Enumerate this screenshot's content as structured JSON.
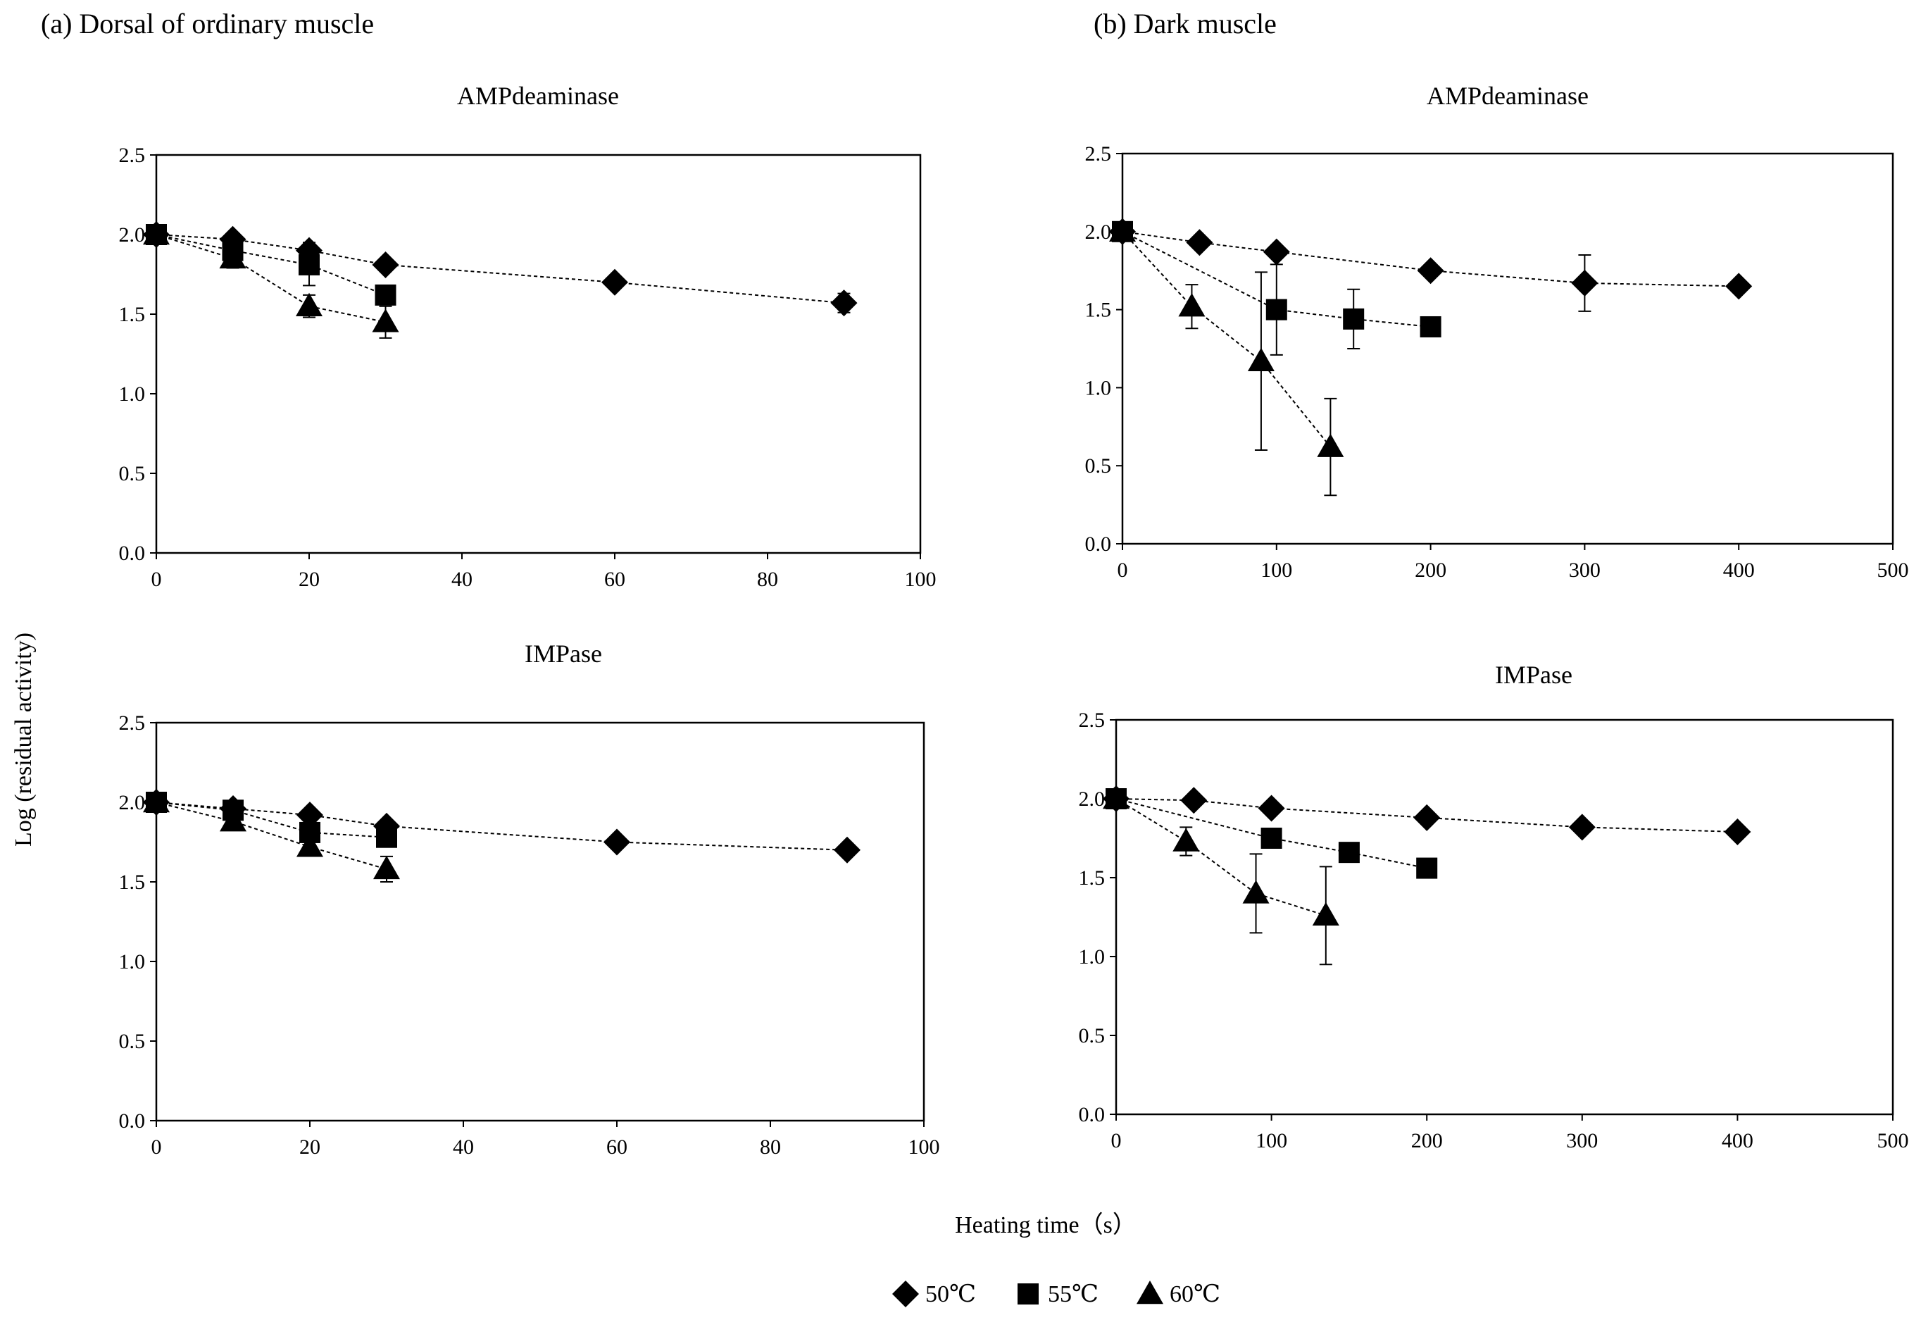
{
  "sections": [
    "(a) Dorsal of ordinary muscle",
    "(b) Dark muscle"
  ],
  "common_xlabel": "Heating time（s）",
  "common_ylabel": "Log (residual activity)",
  "legend": [
    {
      "label": "50℃",
      "marker": "diamond"
    },
    {
      "label": "55℃",
      "marker": "square"
    },
    {
      "label": "60℃",
      "marker": "triangle"
    }
  ],
  "chart_data": [
    {
      "type": "line",
      "title": "AMPdeaminase",
      "xlim": [
        0,
        100
      ],
      "xticks": [
        0,
        20,
        40,
        60,
        80,
        100
      ],
      "ylim": [
        0,
        2.5
      ],
      "yticks": [
        "0.0",
        "0.5",
        "1.0",
        "1.5",
        "2.0",
        "2.5"
      ],
      "series": [
        {
          "name": "50℃",
          "marker": "diamond",
          "x": [
            0,
            10,
            20,
            30,
            60,
            90
          ],
          "y": [
            2.0,
            1.97,
            1.9,
            1.81,
            1.7,
            1.57
          ],
          "err": [
            0,
            0.03,
            0.05,
            0.03,
            0.02,
            0.06
          ]
        },
        {
          "name": "55℃",
          "marker": "square",
          "x": [
            0,
            10,
            20,
            30
          ],
          "y": [
            2.0,
            1.9,
            1.81,
            1.62
          ],
          "err": [
            0,
            0.05,
            0.13,
            0.04
          ]
        },
        {
          "name": "60℃",
          "marker": "triangle",
          "x": [
            0,
            10,
            20,
            30
          ],
          "y": [
            2.0,
            1.85,
            1.55,
            1.45
          ],
          "err": [
            0,
            0.06,
            0.07,
            0.1
          ]
        }
      ]
    },
    {
      "type": "line",
      "title": "AMPdeaminase",
      "xlim": [
        0,
        500
      ],
      "xticks": [
        0,
        100,
        200,
        300,
        400,
        500
      ],
      "ylim": [
        0,
        2.5
      ],
      "yticks": [
        "0.0",
        "0.5",
        "1.0",
        "1.5",
        "2.0",
        "2.5"
      ],
      "series": [
        {
          "name": "50℃",
          "marker": "diamond",
          "x": [
            0,
            50,
            100,
            200,
            300,
            400
          ],
          "y": [
            2.0,
            1.93,
            1.87,
            1.75,
            1.67,
            1.65
          ],
          "err": [
            0,
            0.02,
            0.02,
            0.02,
            0.18,
            0.02
          ]
        },
        {
          "name": "55℃",
          "marker": "square",
          "x": [
            0,
            100,
            150,
            200
          ],
          "y": [
            2.0,
            1.5,
            1.44,
            1.39
          ],
          "err": [
            0,
            0.29,
            0.19,
            0.03
          ]
        },
        {
          "name": "60℃",
          "marker": "triangle",
          "x": [
            0,
            45,
            90,
            135
          ],
          "y": [
            2.0,
            1.52,
            1.17,
            0.62
          ],
          "err": [
            0,
            0.14,
            0.57,
            0.31
          ]
        }
      ]
    },
    {
      "type": "line",
      "title": "IMPase",
      "xlim": [
        0,
        100
      ],
      "xticks": [
        0,
        20,
        40,
        60,
        80,
        100
      ],
      "ylim": [
        0,
        2.5
      ],
      "yticks": [
        "0.0",
        "0.5",
        "1.0",
        "1.5",
        "2.0",
        "2.5"
      ],
      "series": [
        {
          "name": "50℃",
          "marker": "diamond",
          "x": [
            0,
            10,
            20,
            30,
            60,
            90
          ],
          "y": [
            2.0,
            1.96,
            1.92,
            1.85,
            1.75,
            1.7
          ],
          "err": [
            0,
            0.02,
            0.03,
            0.02,
            0.02,
            0.02
          ]
        },
        {
          "name": "55℃",
          "marker": "square",
          "x": [
            0,
            10,
            20,
            30
          ],
          "y": [
            2.0,
            1.95,
            1.81,
            1.78
          ],
          "err": [
            0,
            0.03,
            0.04,
            0.05
          ]
        },
        {
          "name": "60℃",
          "marker": "triangle",
          "x": [
            0,
            10,
            20,
            30
          ],
          "y": [
            2.0,
            1.88,
            1.72,
            1.58
          ],
          "err": [
            0,
            0.04,
            0.05,
            0.08
          ]
        }
      ]
    },
    {
      "type": "line",
      "title": "IMPase",
      "xlim": [
        0,
        500
      ],
      "xticks": [
        0,
        100,
        200,
        300,
        400,
        500
      ],
      "ylim": [
        0,
        2.5
      ],
      "yticks": [
        "0.0",
        "0.5",
        "1.0",
        "1.5",
        "2.0",
        "2.5"
      ],
      "series": [
        {
          "name": "50℃",
          "marker": "diamond",
          "x": [
            0,
            50,
            100,
            200,
            300,
            400
          ],
          "y": [
            2.0,
            1.99,
            1.94,
            1.88,
            1.82,
            1.79
          ],
          "err": [
            0,
            0.02,
            0.02,
            0.02,
            0.02,
            0.02
          ]
        },
        {
          "name": "55℃",
          "marker": "square",
          "x": [
            0,
            100,
            150,
            200
          ],
          "y": [
            2.0,
            1.75,
            1.66,
            1.56
          ],
          "err": [
            0,
            0.03,
            0.03,
            0.03
          ]
        },
        {
          "name": "60℃",
          "marker": "triangle",
          "x": [
            0,
            45,
            90,
            135
          ],
          "y": [
            2.0,
            1.73,
            1.4,
            1.26
          ],
          "err": [
            0,
            0.09,
            0.25,
            0.31
          ]
        }
      ]
    }
  ]
}
